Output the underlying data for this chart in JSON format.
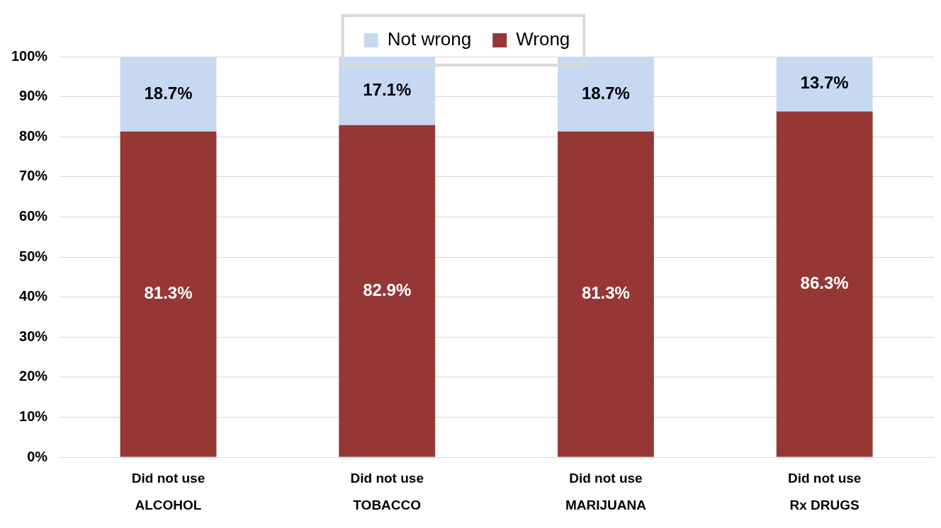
{
  "chart_data": {
    "type": "bar",
    "stacked": true,
    "categories": [
      "Did not use\nALCOHOL",
      "Did not use\nTOBACCO",
      "Did not use\nMARIJUANA",
      "Did not use\nRx DRUGS"
    ],
    "series": [
      {
        "name": "Wrong",
        "color": "#953735",
        "values": [
          81.3,
          82.9,
          81.3,
          86.3
        ],
        "value_labels": [
          "81.3%",
          "82.9%",
          "81.3%",
          "86.3%"
        ]
      },
      {
        "name": "Not wrong",
        "color": "#c6d9f1",
        "values": [
          18.7,
          17.1,
          18.7,
          13.7
        ],
        "value_labels": [
          "18.7%",
          "17.1%",
          "18.7%",
          "13.7%"
        ]
      }
    ],
    "ylim": [
      0,
      100
    ],
    "yticks": [
      {
        "value": 0,
        "label": "0%"
      },
      {
        "value": 10,
        "label": "10%"
      },
      {
        "value": 20,
        "label": "20%"
      },
      {
        "value": 30,
        "label": "30%"
      },
      {
        "value": 40,
        "label": "40%"
      },
      {
        "value": 50,
        "label": "50%"
      },
      {
        "value": 60,
        "label": "60%"
      },
      {
        "value": 70,
        "label": "70%"
      },
      {
        "value": 80,
        "label": "80%"
      },
      {
        "value": 90,
        "label": "90%"
      },
      {
        "value": 100,
        "label": "100%"
      }
    ],
    "grid": "y",
    "legend": "top"
  }
}
